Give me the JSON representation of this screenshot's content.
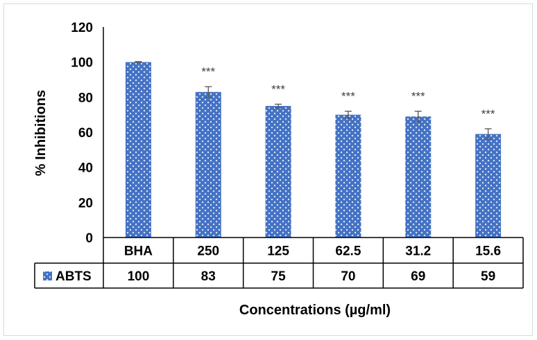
{
  "chart_data": {
    "type": "bar",
    "xlabel": "Concentrations (µg/ml)",
    "ylabel": "% Inhibitions",
    "ylim": [
      0,
      120
    ],
    "yticks": [
      0,
      20,
      40,
      60,
      80,
      100,
      120
    ],
    "grid": false,
    "legend": "data-table",
    "categories": [
      "BHA",
      "250",
      "125",
      "62.5",
      "31.2",
      "15.6"
    ],
    "series": [
      {
        "name": "ABTS",
        "color": "#4472c4",
        "pattern": "dotted",
        "values": [
          100,
          83,
          75,
          70,
          69,
          59
        ],
        "error": [
          0.3,
          3,
          1,
          2,
          3,
          3
        ],
        "annotations": [
          "",
          "***",
          "***",
          "***",
          "***",
          "***"
        ],
        "table_values": [
          "100",
          "83",
          "75",
          "70",
          "69",
          "59"
        ]
      }
    ]
  }
}
